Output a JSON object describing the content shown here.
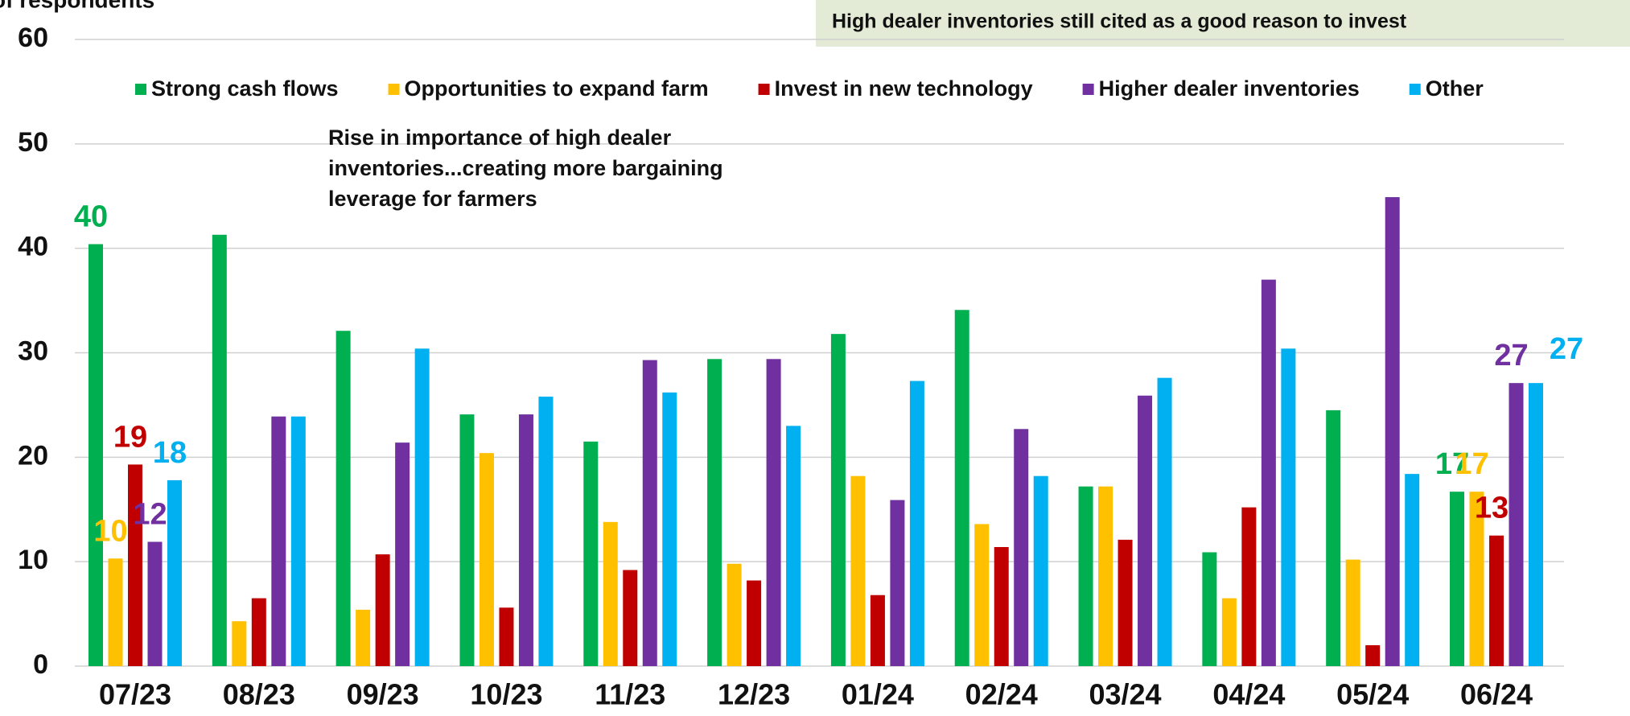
{
  "chart_data": {
    "type": "bar",
    "y_label": "of respondents",
    "banner": "High dealer inventories still cited as a good reason to invest",
    "annotation": [
      "Rise in importance of high dealer",
      "inventories...creating more bargaining",
      "leverage for farmers"
    ],
    "categories": [
      "07/23",
      "08/23",
      "09/23",
      "10/23",
      "11/23",
      "12/23",
      "01/24",
      "02/24",
      "03/24",
      "04/24",
      "05/24",
      "06/24"
    ],
    "series": [
      {
        "name": "Strong cash flows",
        "color": "#00b050",
        "values": [
          40.4,
          41.3,
          32.1,
          24.1,
          21.5,
          29.4,
          31.8,
          34.1,
          17.2,
          10.9,
          24.5,
          16.7
        ],
        "value_labels": [
          "40",
          null,
          null,
          null,
          null,
          null,
          null,
          null,
          null,
          null,
          null,
          "17"
        ]
      },
      {
        "name": "Opportunities to expand farm",
        "color": "#ffc000",
        "values": [
          10.3,
          4.3,
          5.4,
          20.4,
          13.8,
          9.8,
          18.2,
          13.6,
          17.2,
          6.5,
          10.2,
          16.7
        ],
        "value_labels": [
          "10",
          null,
          null,
          null,
          null,
          null,
          null,
          null,
          null,
          null,
          null,
          "17"
        ]
      },
      {
        "name": "Invest in new technology",
        "color": "#c00000",
        "values": [
          19.3,
          6.5,
          10.7,
          5.6,
          9.2,
          8.2,
          6.8,
          11.4,
          12.1,
          15.2,
          2.0,
          12.5
        ],
        "value_labels": [
          "19",
          null,
          null,
          null,
          null,
          null,
          null,
          null,
          null,
          null,
          null,
          "13"
        ]
      },
      {
        "name": "Higher dealer inventories",
        "color": "#7030a0",
        "values": [
          11.9,
          23.9,
          21.4,
          24.1,
          29.3,
          29.4,
          15.9,
          22.7,
          25.9,
          37.0,
          44.9,
          27.1
        ],
        "value_labels": [
          "12",
          null,
          null,
          null,
          null,
          null,
          null,
          null,
          null,
          null,
          null,
          "27"
        ]
      },
      {
        "name": "Other",
        "color": "#00b0f0",
        "values": [
          17.8,
          23.9,
          30.4,
          25.8,
          26.2,
          23.0,
          27.3,
          18.2,
          27.6,
          30.4,
          18.4,
          27.1
        ],
        "value_labels": [
          "18",
          null,
          null,
          null,
          null,
          null,
          null,
          null,
          null,
          null,
          null,
          "27"
        ]
      }
    ],
    "ylim": [
      0,
      60
    ],
    "yticks": [
      0,
      10,
      20,
      30,
      40,
      50,
      60
    ],
    "grid": true
  }
}
